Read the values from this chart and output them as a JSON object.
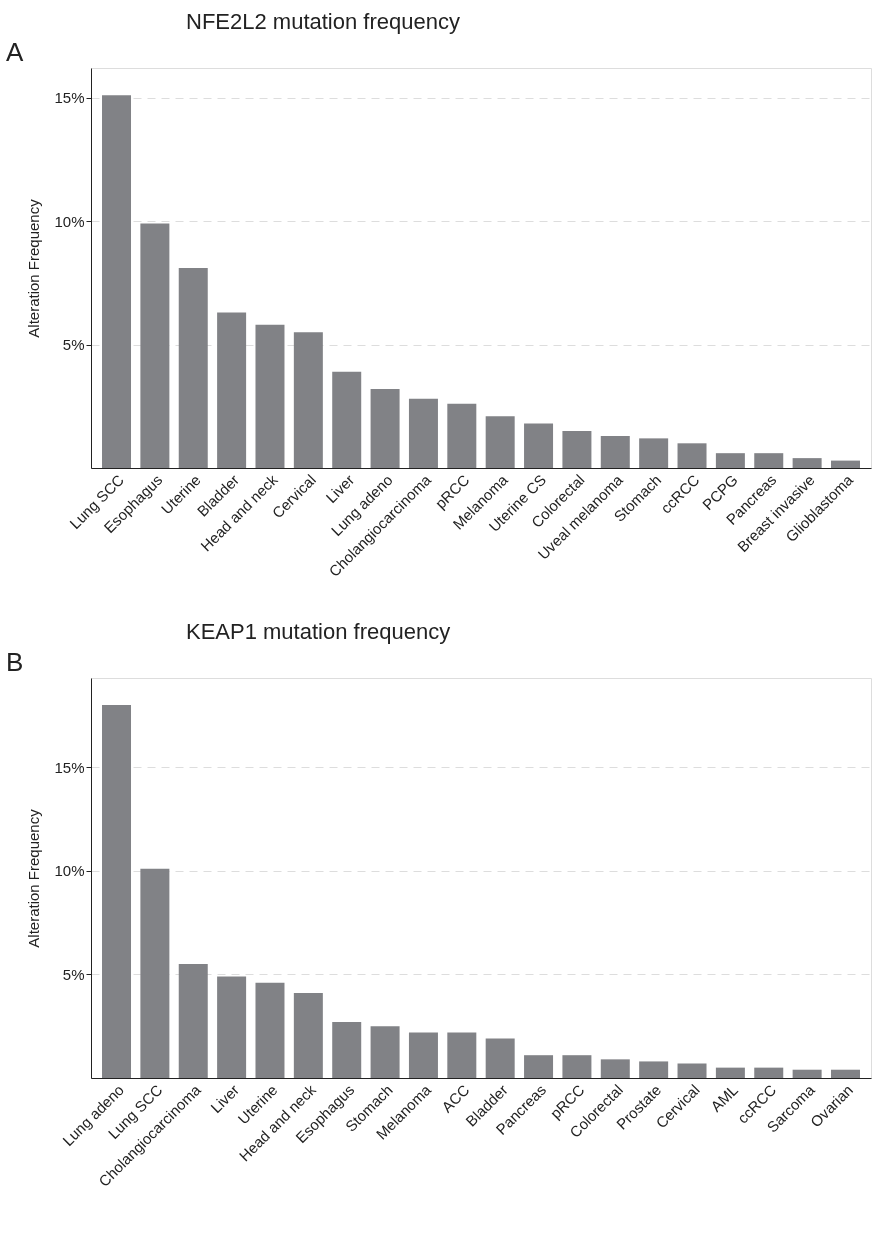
{
  "chart_data": [
    {
      "type": "bar",
      "title": "NFE2L2 mutation frequency",
      "ylabel": "Alteration Frequency",
      "annotations": [
        "A"
      ],
      "categories": [
        "Lung SCC",
        "Esophagus",
        "Uterine",
        "Bladder",
        "Head and neck",
        "Cervical",
        "Liver",
        "Lung adeno",
        "Cholangiocarcinoma",
        "pRCC",
        "Melanoma",
        "Uterine CS",
        "Colorectal",
        "Uveal melanoma",
        "Stomach",
        "ccRCC",
        "PCPG",
        "Pancreas",
        "Breast invasive",
        "Glioblastoma"
      ],
      "values": [
        15.1,
        9.9,
        8.1,
        6.3,
        5.8,
        5.5,
        3.9,
        3.2,
        2.8,
        2.6,
        2.1,
        1.8,
        1.5,
        1.3,
        1.2,
        1.0,
        0.6,
        0.6,
        0.4,
        0.3
      ],
      "color": "#818286",
      "ylim": [
        0,
        16.2
      ],
      "yticks": [
        {
          "value": 5,
          "label": "5%"
        },
        {
          "value": 10,
          "label": "10%"
        },
        {
          "value": 15,
          "label": "15%"
        }
      ],
      "grid": "y"
    },
    {
      "type": "bar",
      "title": "KEAP1 mutation frequency",
      "ylabel": "Alteration Frequency",
      "annotations": [
        "B"
      ],
      "categories": [
        "Lung adeno",
        "Lung SCC",
        "Cholangiocarcinoma",
        "Liver",
        "Uterine",
        "Head and neck",
        "Esophagus",
        "Stomach",
        "Melanoma",
        "ACC",
        "Bladder",
        "Pancreas",
        "pRCC",
        "Colorectal",
        "Prostate",
        "Cervical",
        "AML",
        "ccRCC",
        "Sarcoma",
        "Ovarian"
      ],
      "values": [
        18.0,
        10.1,
        5.5,
        4.9,
        4.6,
        4.1,
        2.7,
        2.5,
        2.2,
        2.2,
        1.9,
        1.1,
        1.1,
        0.9,
        0.8,
        0.7,
        0.5,
        0.5,
        0.4,
        0.4
      ],
      "color": "#818286",
      "ylim": [
        0,
        19.3
      ],
      "yticks": [
        {
          "value": 5,
          "label": "5%"
        },
        {
          "value": 10,
          "label": "10%"
        },
        {
          "value": 15,
          "label": "15%"
        }
      ],
      "grid": "y"
    }
  ]
}
